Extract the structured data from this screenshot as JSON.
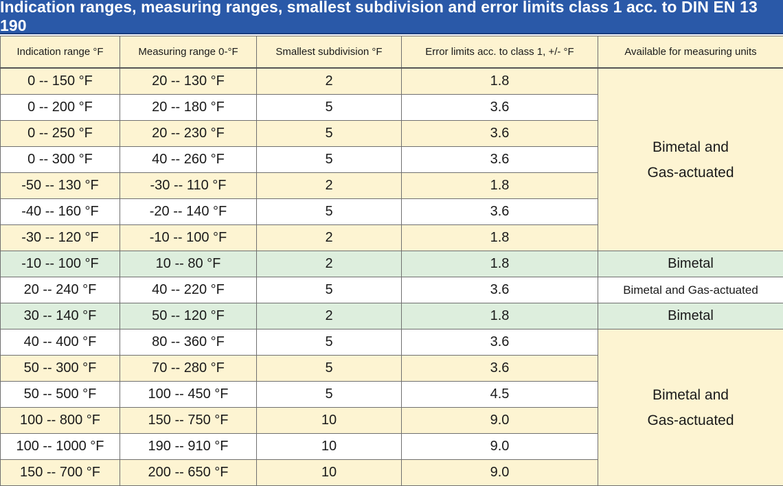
{
  "title": "Indication ranges, measuring ranges, smallest subdivision and error limits class 1 acc. to DIN EN 13 190",
  "headers": [
    "Indication range °F",
    "Measuring range 0-°F",
    "Smallest subdivision °F",
    "Error limits acc. to class 1, +/- °F",
    "Available for measuring units"
  ],
  "rows": [
    [
      "0 -- 150 °F",
      "20 -- 130 °F",
      "2",
      "1.8"
    ],
    [
      "0 -- 200 °F",
      "20 -- 180 °F",
      "5",
      "3.6"
    ],
    [
      "0 -- 250 °F",
      "20 -- 230 °F",
      "5",
      "3.6"
    ],
    [
      "0 -- 300 °F",
      "40 -- 260 °F",
      "5",
      "3.6"
    ],
    [
      "-50 -- 130 °F",
      "-30 -- 110 °F",
      "2",
      "1.8"
    ],
    [
      "-40 -- 160 °F",
      "-20 -- 140 °F",
      "5",
      "3.6"
    ],
    [
      "-30 -- 120 °F",
      "-10 -- 100 °F",
      "2",
      "1.8"
    ],
    [
      "-10 -- 100 °F",
      "10 -- 80 °F",
      "2",
      "1.8"
    ],
    [
      "20 -- 240 °F",
      "40 -- 220 °F",
      "5",
      "3.6"
    ],
    [
      "30 -- 140 °F",
      "50 -- 120 °F",
      "2",
      "1.8"
    ],
    [
      "40 -- 400 °F",
      "80 -- 360 °F",
      "5",
      "3.6"
    ],
    [
      "50 -- 300 °F",
      "70 -- 280 °F",
      "5",
      "3.6"
    ],
    [
      "50 -- 500 °F",
      "100 -- 450 °F",
      "5",
      "4.5"
    ],
    [
      "100 -- 800 °F",
      "150 -- 750 °F",
      "10",
      "9.0"
    ],
    [
      "100 -- 1000 °F",
      "190 -- 910 °F",
      "10",
      "9.0"
    ],
    [
      "150 -- 700 °F",
      "200 -- 650 °F",
      "10",
      "9.0"
    ]
  ],
  "units": {
    "group1": [
      "Bimetal and",
      "Gas-actuated"
    ],
    "row8": "Bimetal",
    "row9": "Bimetal and Gas-actuated",
    "row10": "Bimetal",
    "group2": [
      "Bimetal and",
      "Gas-actuated"
    ]
  },
  "colors": {
    "title_bg": "#2a59a8",
    "cream": "#fdf4d2",
    "green": "#ddeedd",
    "white": "#ffffff"
  }
}
